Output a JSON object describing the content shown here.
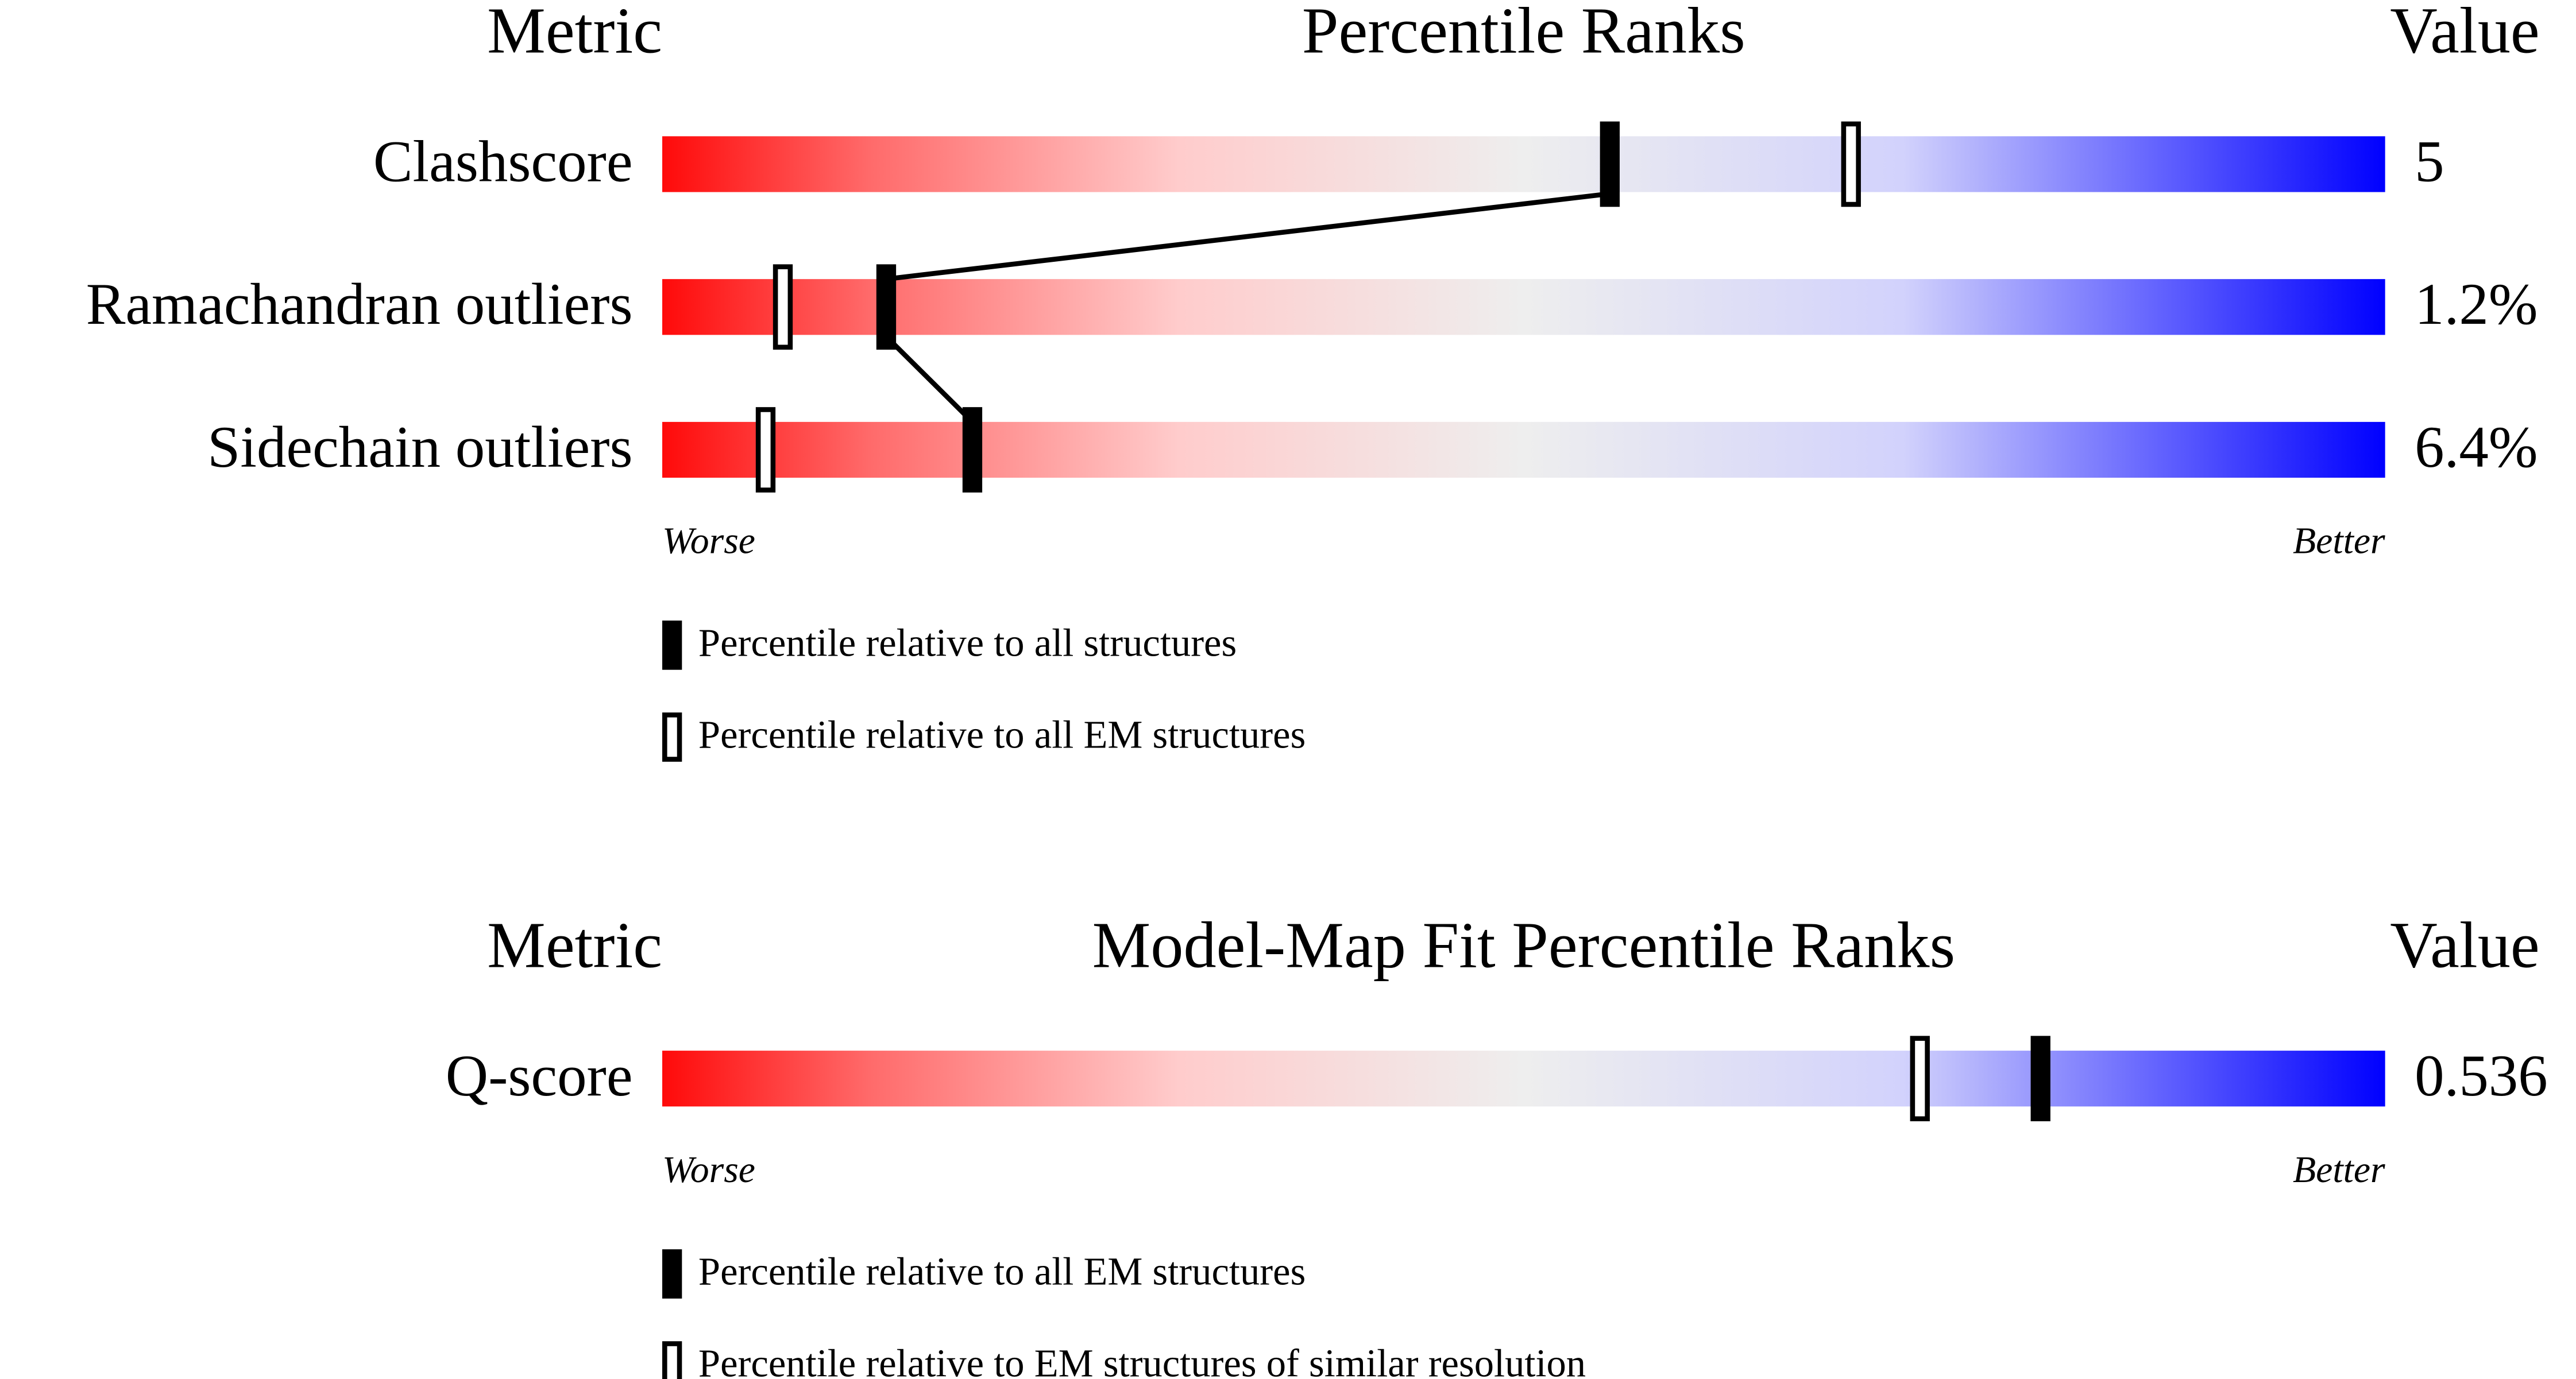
{
  "chart_data": [
    {
      "type": "percentile",
      "headers": {
        "metric": "Metric",
        "title": "Percentile Ranks",
        "value": "Value"
      },
      "categories": [
        "Clashscore",
        "Ramachandran outliers",
        "Sidechain outliers"
      ],
      "row_values": [
        "5",
        "1.2%",
        "6.4%"
      ],
      "xlim": [
        0,
        100
      ],
      "axis_labels": {
        "left": "Worse",
        "right": "Better"
      },
      "series": [
        {
          "name": "Percentile relative to all structures",
          "style": "filled",
          "color": "#000000",
          "connected": true,
          "values": [
            55,
            13,
            18
          ]
        },
        {
          "name": "Percentile relative to all EM structures",
          "style": "open",
          "color": "#000000",
          "connected": false,
          "values": [
            69,
            7,
            6
          ]
        }
      ]
    },
    {
      "type": "percentile",
      "headers": {
        "metric": "Metric",
        "title": "Model-Map Fit Percentile Ranks",
        "value": "Value"
      },
      "categories": [
        "Q-score"
      ],
      "row_values": [
        "0.536"
      ],
      "xlim": [
        0,
        100
      ],
      "axis_labels": {
        "left": "Worse",
        "right": "Better"
      },
      "series": [
        {
          "name": "Percentile relative to all EM structures",
          "style": "filled",
          "color": "#000000",
          "connected": true,
          "values": [
            80
          ]
        },
        {
          "name": "Percentile relative to EM structures of similar resolution",
          "style": "open",
          "color": "#000000",
          "connected": false,
          "values": [
            73
          ]
        }
      ]
    }
  ]
}
